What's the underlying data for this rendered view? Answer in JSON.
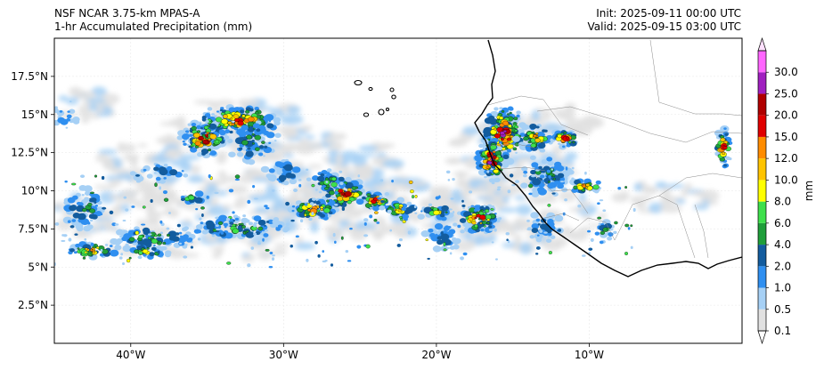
{
  "title": {
    "model": "NSF NCAR 3.75-km MPAS-A",
    "field": "1-hr Accumulated Precipitation (mm)",
    "init": "Init: 2025-09-11 00:00 UTC",
    "valid": "Valid: 2025-09-15 03:00 UTC"
  },
  "map": {
    "lon_range": [
      -45,
      0
    ],
    "lat_range": [
      0,
      20
    ],
    "lon_ticks": [
      {
        "value": -40,
        "label": "40°W"
      },
      {
        "value": -30,
        "label": "30°W"
      },
      {
        "value": -20,
        "label": "20°W"
      },
      {
        "value": -10,
        "label": "10°W"
      }
    ],
    "lat_ticks": [
      {
        "value": 2.5,
        "label": "2.5°N"
      },
      {
        "value": 5,
        "label": "5°N"
      },
      {
        "value": 7.5,
        "label": "7.5°N"
      },
      {
        "value": 10,
        "label": "10°N"
      },
      {
        "value": 12.5,
        "label": "12.5°N"
      },
      {
        "value": 15,
        "label": "15°N"
      },
      {
        "value": 17.5,
        "label": "17.5°N"
      }
    ],
    "gridlines": true
  },
  "colorbar": {
    "unit": "mm",
    "levels": [
      "0.1",
      "0.5",
      "1.0",
      "2.0",
      "4.0",
      "6.0",
      "8.0",
      "10.0",
      "12.0",
      "15.0",
      "20.0",
      "25.0",
      "30.0"
    ],
    "colors": [
      "#e1e1e1",
      "#a6d0f5",
      "#2f8ff0",
      "#135c9e",
      "#1f9e3a",
      "#3ee04c",
      "#ffff00",
      "#ffc400",
      "#ff8c00",
      "#e00000",
      "#b00000",
      "#a020c0",
      "#ff66ff"
    ],
    "over_color": "#ffe0ff",
    "under_color": "#ffffff"
  },
  "precip_cells": [
    {
      "lon": -33.0,
      "lat": 14.6,
      "rlon": 3.2,
      "rlat": 1.0,
      "level": 9
    },
    {
      "lon": -35.2,
      "lat": 13.4,
      "rlon": 1.6,
      "rlat": 1.2,
      "level": 10
    },
    {
      "lon": -32.0,
      "lat": 13.2,
      "rlon": 1.8,
      "rlat": 1.4,
      "level": 4
    },
    {
      "lon": -15.6,
      "lat": 13.8,
      "rlon": 1.4,
      "rlat": 2.0,
      "level": 11
    },
    {
      "lon": -16.4,
      "lat": 12.0,
      "rlon": 1.0,
      "rlat": 1.5,
      "level": 11
    },
    {
      "lon": -13.6,
      "lat": 13.5,
      "rlon": 1.2,
      "rlat": 1.0,
      "level": 8
    },
    {
      "lon": -12.8,
      "lat": 11.0,
      "rlon": 1.8,
      "rlat": 1.4,
      "level": 4
    },
    {
      "lon": -11.6,
      "lat": 13.4,
      "rlon": 1.0,
      "rlat": 0.6,
      "level": 9
    },
    {
      "lon": -26.0,
      "lat": 9.8,
      "rlon": 1.4,
      "rlat": 1.0,
      "level": 10
    },
    {
      "lon": -24.0,
      "lat": 9.4,
      "rlon": 1.0,
      "rlat": 0.7,
      "level": 9
    },
    {
      "lon": -28.0,
      "lat": 8.8,
      "rlon": 1.6,
      "rlat": 0.8,
      "level": 8
    },
    {
      "lon": -22.4,
      "lat": 8.8,
      "rlon": 1.2,
      "rlat": 0.6,
      "level": 7
    },
    {
      "lon": -17.2,
      "lat": 8.2,
      "rlon": 1.4,
      "rlat": 1.0,
      "level": 9
    },
    {
      "lon": -20.0,
      "lat": 8.6,
      "rlon": 1.2,
      "rlat": 0.6,
      "level": 6
    },
    {
      "lon": -10.2,
      "lat": 10.3,
      "rlon": 1.2,
      "rlat": 0.5,
      "level": 8
    },
    {
      "lon": -1.2,
      "lat": 12.8,
      "rlon": 0.5,
      "rlat": 1.5,
      "level": 9
    },
    {
      "lon": -33.0,
      "lat": 7.6,
      "rlon": 3.5,
      "rlat": 0.8,
      "level": 5
    },
    {
      "lon": -38.5,
      "lat": 6.9,
      "rlon": 3.0,
      "rlat": 0.8,
      "level": 5
    },
    {
      "lon": -42.5,
      "lat": 6.1,
      "rlon": 1.8,
      "rlat": 0.5,
      "level": 8
    },
    {
      "lon": -39.0,
      "lat": 6.0,
      "rlon": 1.6,
      "rlat": 0.5,
      "level": 6
    },
    {
      "lon": -43.0,
      "lat": 8.8,
      "rlon": 1.4,
      "rlat": 1.4,
      "level": 4
    },
    {
      "lon": -38.0,
      "lat": 11.2,
      "rlon": 2.0,
      "rlat": 0.6,
      "level": 3
    },
    {
      "lon": -30.0,
      "lat": 11.2,
      "rlon": 1.6,
      "rlat": 0.8,
      "level": 3
    },
    {
      "lon": -27.0,
      "lat": 10.6,
      "rlon": 1.4,
      "rlat": 0.8,
      "level": 5
    },
    {
      "lon": -19.5,
      "lat": 7.0,
      "rlon": 1.4,
      "rlat": 1.0,
      "level": 3
    },
    {
      "lon": -13.0,
      "lat": 7.6,
      "rlon": 1.5,
      "rlat": 0.9,
      "level": 3
    },
    {
      "lon": -9.0,
      "lat": 7.4,
      "rlon": 0.8,
      "rlat": 0.6,
      "level": 4
    },
    {
      "lon": -36.0,
      "lat": 9.5,
      "rlon": 1.0,
      "rlat": 0.5,
      "level": 5
    },
    {
      "lon": -44.2,
      "lat": 15.0,
      "rlon": 0.8,
      "rlat": 1.0,
      "level": 2
    }
  ],
  "light_precip_regions": [
    {
      "lon": -33.0,
      "lat": 14.0,
      "rlon": 5.0,
      "rlat": 2.0
    },
    {
      "lon": -27.0,
      "lat": 12.2,
      "rlon": 5.0,
      "rlat": 1.4
    },
    {
      "lon": -35.0,
      "lat": 8.5,
      "rlon": 10.0,
      "rlat": 3.0
    },
    {
      "lon": -24.0,
      "lat": 9.0,
      "rlon": 6.0,
      "rlat": 2.0
    },
    {
      "lon": -15.0,
      "lat": 12.0,
      "rlon": 4.0,
      "rlat": 3.0
    },
    {
      "lon": -15.0,
      "lat": 8.5,
      "rlon": 6.0,
      "rlat": 2.5
    },
    {
      "lon": -43.0,
      "lat": 15.6,
      "rlon": 2.0,
      "rlat": 1.0
    },
    {
      "lon": -5.0,
      "lat": 9.5,
      "rlon": 3.0,
      "rlat": 1.0
    },
    {
      "lon": -12.0,
      "lat": 14.5,
      "rlon": 2.5,
      "rlat": 1.0
    },
    {
      "lon": -39.0,
      "lat": 12.0,
      "rlon": 3.0,
      "rlat": 1.2
    }
  ]
}
